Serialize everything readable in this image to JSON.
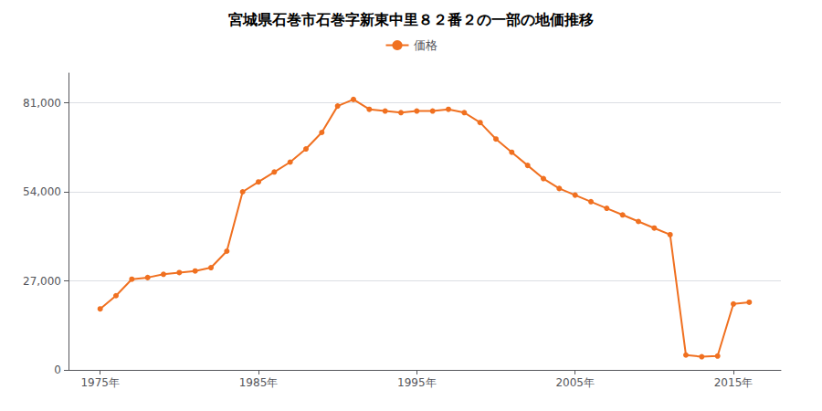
{
  "chart_data": {
    "type": "line",
    "title": "宮城県石巻市石巻字新東中里８２番２の一部の地価推移",
    "x": [
      1975,
      1976,
      1977,
      1978,
      1979,
      1980,
      1981,
      1982,
      1983,
      1984,
      1985,
      1986,
      1987,
      1988,
      1989,
      1990,
      1991,
      1992,
      1993,
      1994,
      1995,
      1996,
      1997,
      1998,
      1999,
      2000,
      2001,
      2002,
      2003,
      2004,
      2005,
      2006,
      2007,
      2008,
      2009,
      2010,
      2011,
      2012,
      2013,
      2014,
      2015,
      2016
    ],
    "series": [
      {
        "name": "価格",
        "color": "#f07020",
        "marker": "circle",
        "values": [
          18500,
          22500,
          27500,
          28000,
          29000,
          29500,
          30000,
          31000,
          36000,
          54000,
          57000,
          60000,
          63000,
          67000,
          72000,
          80000,
          82000,
          79000,
          78500,
          78000,
          78500,
          78500,
          79000,
          78000,
          75000,
          70000,
          66000,
          62000,
          58000,
          55000,
          53000,
          51000,
          49000,
          47000,
          45000,
          43000,
          41000,
          4500,
          4000,
          4200,
          20000,
          20500
        ]
      }
    ],
    "xlim": [
      1973,
      2018
    ],
    "xticks": [
      {
        "value": 1975,
        "label": "1975年"
      },
      {
        "value": 1985,
        "label": "1985年"
      },
      {
        "value": 1995,
        "label": "1995年"
      },
      {
        "value": 2005,
        "label": "2005年"
      },
      {
        "value": 2015,
        "label": "2015年"
      }
    ],
    "ylim": [
      0,
      90000
    ],
    "yticks": [
      0,
      {
        "value": 27000,
        "label": "27,000"
      },
      {
        "value": 54000,
        "label": "54,000"
      },
      {
        "value": 81000,
        "label": "81,000"
      }
    ],
    "grid": true,
    "legend": "top"
  }
}
